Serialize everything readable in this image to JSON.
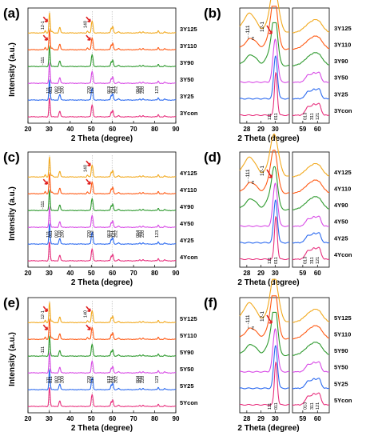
{
  "figure": {
    "rows": [
      {
        "left_label": "(a)",
        "right_label": "(b)"
      },
      {
        "left_label": "(c)",
        "right_label": "(d)"
      },
      {
        "left_label": "(e)",
        "right_label": "(f)"
      }
    ]
  },
  "colors": {
    "Y125": "#f2a91e",
    "Y110": "#ff5a14",
    "Y90": "#2f9a2f",
    "Y50": "#d84be6",
    "Y25": "#2d6bf0",
    "Ycon": "#e8307e",
    "arrow": "#e02020"
  },
  "chart_data": [
    {
      "panel": "(a)",
      "type": "line",
      "xlabel": "2 Theta (degree)",
      "ylabel": "Intensity (a.u.)",
      "xlim": [
        20,
        90
      ],
      "xticks": [
        20,
        30,
        40,
        50,
        60,
        70,
        80,
        90
      ],
      "series": [
        {
          "name": "3Ycon",
          "color": "#e8307e"
        },
        {
          "name": "3Y25",
          "color": "#2d6bf0"
        },
        {
          "name": "3Y50",
          "color": "#d84be6"
        },
        {
          "name": "3Y90",
          "color": "#2f9a2f"
        },
        {
          "name": "3Y110",
          "color": "#ff5a14"
        },
        {
          "name": "3Y125",
          "color": "#f2a91e"
        }
      ],
      "peaks": [
        {
          "x": 30.2,
          "h": 1.0,
          "label": "111"
        },
        {
          "x": 34.8,
          "h": 0.14,
          "label": "002"
        },
        {
          "x": 35.2,
          "h": 0.2,
          "label": "110"
        },
        {
          "x": 50.2,
          "h": 0.45,
          "label": "112"
        },
        {
          "x": 50.7,
          "h": 0.35,
          "label": "220"
        },
        {
          "x": 59.4,
          "h": 0.22,
          "label": "013"
        },
        {
          "x": 60.2,
          "h": 0.32,
          "label": "121"
        },
        {
          "x": 62.9,
          "h": 0.06,
          "label": "202"
        },
        {
          "x": 73.0,
          "h": 0.05,
          "label": "004"
        },
        {
          "x": 74.5,
          "h": 0.07,
          "label": "220"
        },
        {
          "x": 81.7,
          "h": 0.1,
          "label": "123"
        },
        {
          "x": 84.8,
          "h": 0.05,
          "label": "222"
        }
      ],
      "annotations": [
        "12-1",
        "140",
        "-111",
        "111",
        "011",
        "002",
        "110",
        "220",
        "112",
        "013",
        "311",
        "121",
        "202",
        "004",
        "400",
        "220",
        "123"
      ]
    },
    {
      "panel": "(b)",
      "type": "line",
      "xlabel": "2 Theta (degree)",
      "ylabel": "",
      "xlim": [
        27.5,
        31
      ],
      "xticks": [
        28,
        29,
        30
      ],
      "xlim2": [
        58.3,
        60.8
      ],
      "xticks2": [
        59,
        60
      ],
      "series": [
        "3Ycon",
        "3Y25",
        "3Y50",
        "3Y90",
        "3Y110",
        "3Y125"
      ],
      "annotations": [
        "-111m",
        "12-1",
        "111",
        "011",
        "013",
        "311",
        "121"
      ]
    },
    {
      "panel": "(c)",
      "type": "line",
      "xlabel": "2 Theta (degree)",
      "ylabel": "Intensity (a.u.)",
      "xlim": [
        20,
        90
      ],
      "xticks": [
        20,
        30,
        40,
        50,
        60,
        70,
        80,
        90
      ],
      "series": [
        "4Ycon",
        "4Y25",
        "4Y50",
        "4Y90",
        "4Y110",
        "4Y125"
      ],
      "annotations": [
        "140",
        "-111",
        "111",
        "011",
        "002",
        "110",
        "220",
        "112",
        "013",
        "311",
        "121",
        "202",
        "004",
        "400",
        "220",
        "123"
      ]
    },
    {
      "panel": "(d)",
      "type": "line",
      "xlabel": "2 Theta (degree)",
      "ylabel": "",
      "xlim": [
        27.5,
        31
      ],
      "xticks": [
        28,
        29,
        30
      ],
      "xlim2": [
        58.3,
        60.8
      ],
      "xticks2": [
        59,
        60
      ],
      "series": [
        "4Ycon",
        "4Y25",
        "4Y50",
        "4Y90",
        "4Y110",
        "4Y125"
      ],
      "annotations": [
        "-111m",
        "12-1",
        "111",
        "011",
        "013",
        "311",
        "121"
      ]
    },
    {
      "panel": "(e)",
      "type": "line",
      "xlabel": "2 Theta (degree)",
      "ylabel": "Intensity (a.u.)",
      "xlim": [
        20,
        90
      ],
      "xticks": [
        20,
        30,
        40,
        50,
        60,
        70,
        80,
        90
      ],
      "series": [
        "5Ycon",
        "5Y25",
        "5Y50",
        "5Y90",
        "5Y110",
        "5Y125"
      ],
      "annotations": [
        "12-1",
        "140",
        "-111",
        "111",
        "011",
        "002",
        "110",
        "220",
        "112",
        "013",
        "311",
        "121",
        "202",
        "004",
        "400",
        "220",
        "123"
      ]
    },
    {
      "panel": "(f)",
      "type": "line",
      "xlabel": "2 Theta (degree)",
      "ylabel": "",
      "xlim": [
        27.5,
        31
      ],
      "xticks": [
        28,
        29,
        30
      ],
      "xlim2": [
        58.3,
        60.8
      ],
      "xticks2": [
        59,
        60
      ],
      "series": [
        "5Ycon",
        "5Y25",
        "5Y50",
        "5Y90",
        "5Y110",
        "5Y125"
      ],
      "annotations": [
        "-111m",
        "12-1",
        "111",
        "011",
        "013",
        "311",
        "121"
      ]
    }
  ]
}
